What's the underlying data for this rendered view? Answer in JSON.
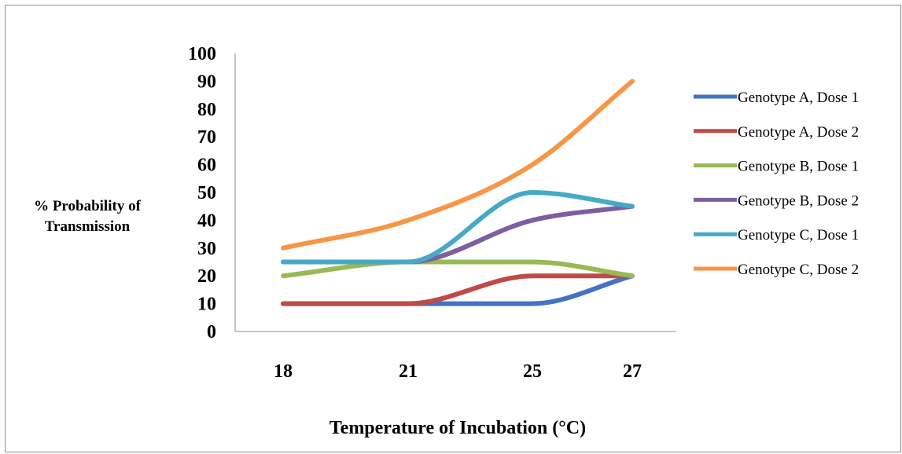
{
  "chart_data": {
    "type": "line",
    "title": "",
    "xlabel": "Temperature of Incubation (°C)",
    "ylabel": "% Probability of Transmission",
    "ylabel_lines": [
      "% Probability of",
      "Transmission"
    ],
    "categories": [
      "18",
      "21",
      "25",
      "27"
    ],
    "y_ticks": [
      "0",
      "10",
      "20",
      "30",
      "40",
      "50",
      "60",
      "70",
      "80",
      "90",
      "100"
    ],
    "ylim": [
      0,
      100
    ],
    "grid": false,
    "smooth": true,
    "legend_position": "right",
    "series": [
      {
        "name": "Genotype A, Dose 1",
        "color": "#4472C4",
        "values": [
          10,
          10,
          10,
          20
        ]
      },
      {
        "name": "Genotype A, Dose 2",
        "color": "#BE4B48",
        "values": [
          10,
          10,
          20,
          20
        ]
      },
      {
        "name": "Genotype B, Dose 1",
        "color": "#98B954",
        "values": [
          20,
          25,
          25,
          20
        ]
      },
      {
        "name": "Genotype B, Dose 2",
        "color": "#7D5FA0",
        "values": [
          25,
          25,
          40,
          45
        ]
      },
      {
        "name": "Genotype C, Dose 1",
        "color": "#46AAC5",
        "values": [
          25,
          25,
          50,
          45
        ]
      },
      {
        "name": "Genotype C, Dose 2",
        "color": "#F79646",
        "values": [
          30,
          40,
          60,
          90
        ]
      }
    ]
  }
}
